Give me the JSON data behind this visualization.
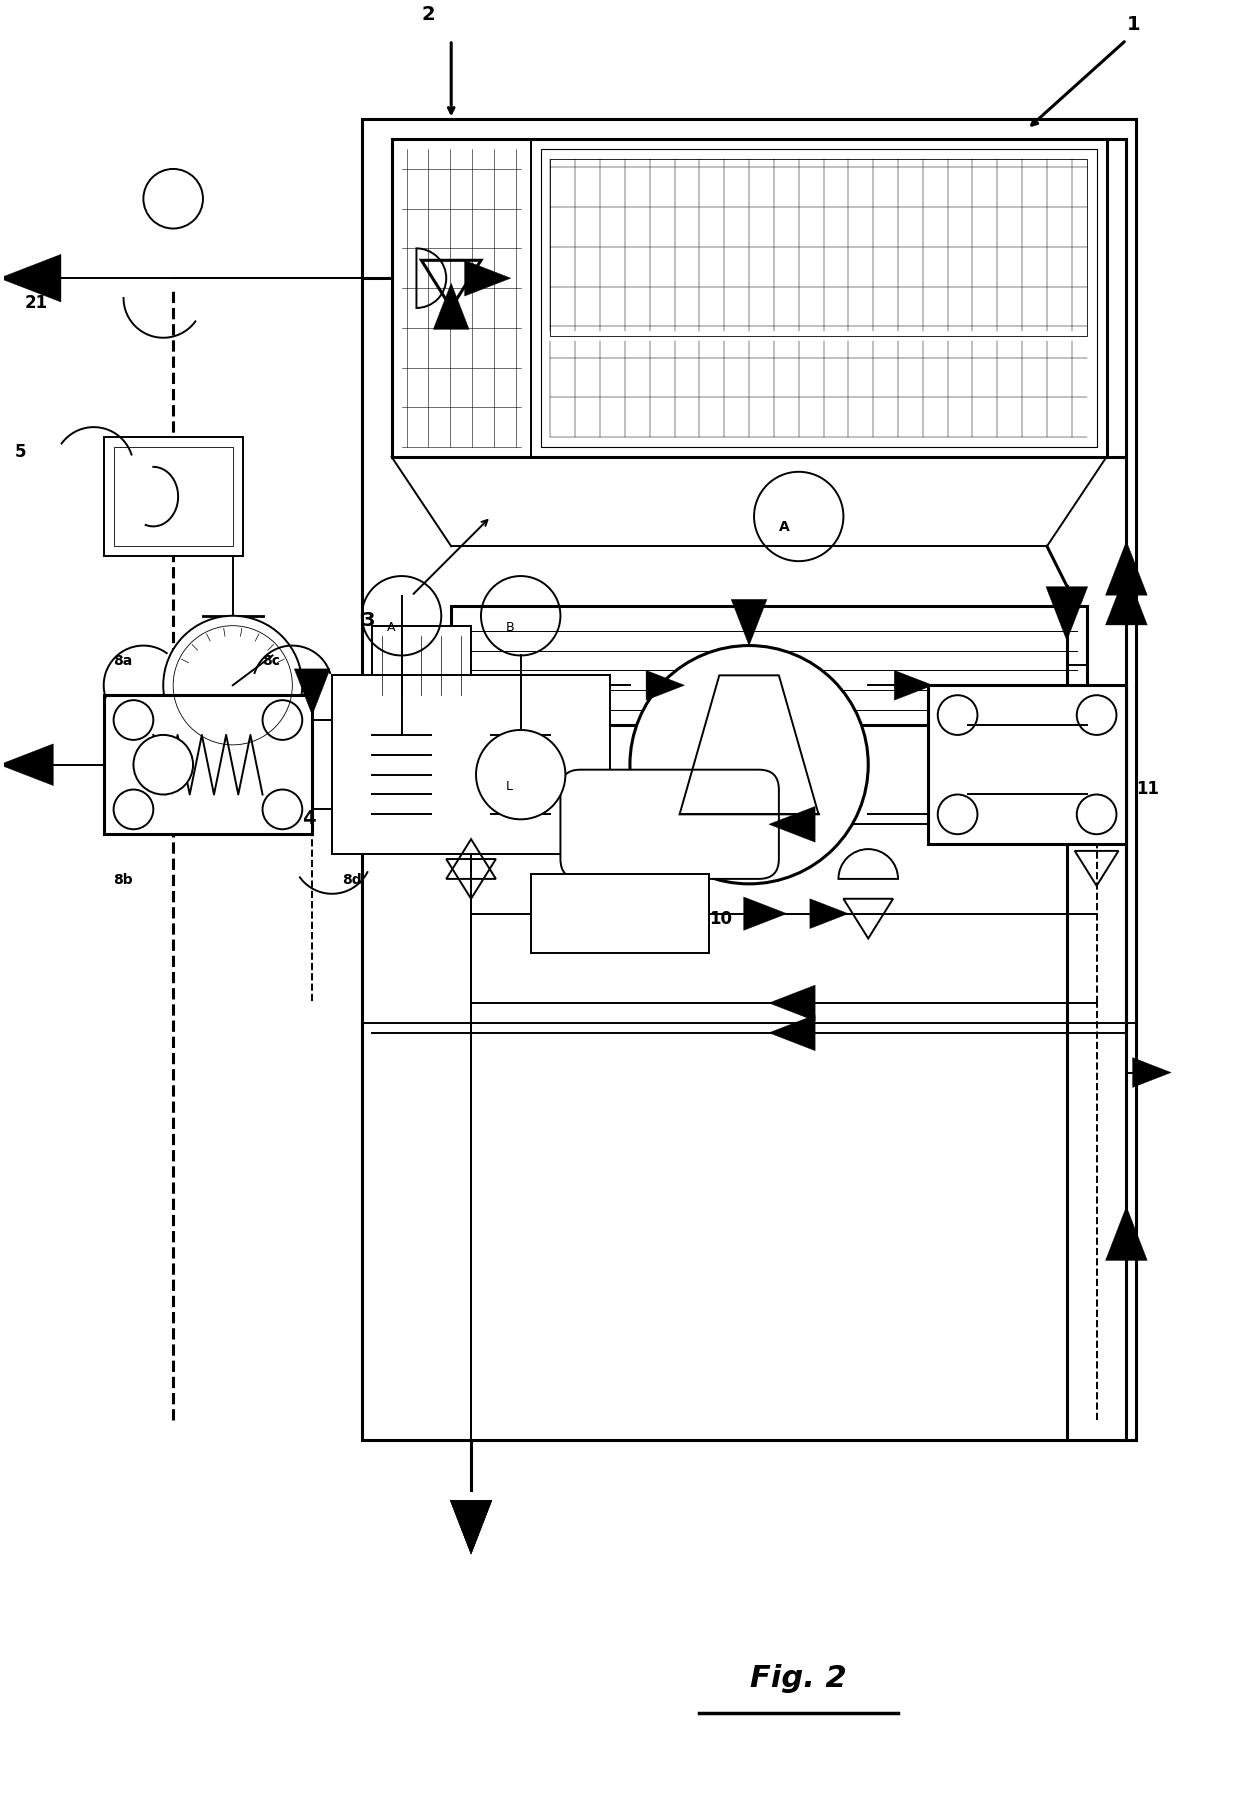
{
  "title": "Fig. 2",
  "bg_color": "#ffffff",
  "lc": "#000000",
  "label1": "1",
  "label2": "2",
  "label3": "3",
  "label4": "4",
  "label5": "5",
  "label8a": "8a",
  "label8b": "8b",
  "label8c": "8c",
  "label8d": "8d",
  "label10": "10",
  "label11": "11",
  "label21": "21",
  "labelA": "A",
  "labelB": "B"
}
